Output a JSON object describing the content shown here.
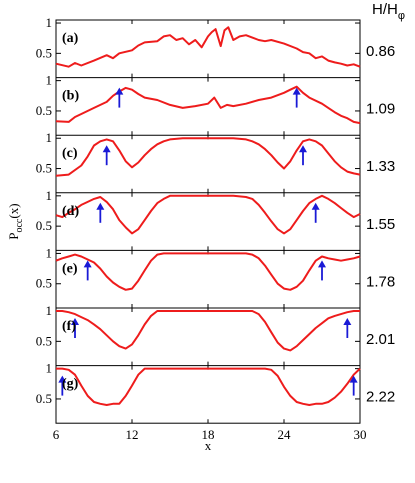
{
  "chart_data": {
    "type": "line",
    "ylabel_main": "P",
    "ylabel_sub": "occ",
    "ylabel_tail": "(x)",
    "xlabel": "x",
    "right_header_main": "H/H",
    "right_header_sub": "φ",
    "xlim": [
      6,
      30
    ],
    "ylim": [
      0.1,
      1.05
    ],
    "xticks": [
      "6",
      "12",
      "18",
      "24",
      "30"
    ],
    "yticks": [
      "0.5",
      "1"
    ],
    "line_color": "#ee1c1c",
    "arrow_color": "#1a1ad6",
    "panels": [
      {
        "label": "(a)",
        "hval": "0.86",
        "arrows": [],
        "x": [
          6,
          7,
          7.5,
          8,
          9,
          10,
          10.5,
          11,
          12,
          12.5,
          13,
          14,
          14.5,
          15,
          15.5,
          16,
          16.5,
          17,
          17.5,
          18,
          18.3,
          18.6,
          19,
          19.3,
          19.6,
          20,
          20.5,
          21,
          21.5,
          22,
          22.5,
          23,
          24,
          25,
          25.5,
          26,
          26.5,
          27,
          27.5,
          28,
          28.5,
          29,
          29.5,
          30
        ],
        "y": [
          0.33,
          0.28,
          0.34,
          0.3,
          0.38,
          0.47,
          0.42,
          0.5,
          0.55,
          0.63,
          0.68,
          0.7,
          0.78,
          0.8,
          0.72,
          0.75,
          0.65,
          0.72,
          0.6,
          0.78,
          0.85,
          0.9,
          0.62,
          0.88,
          0.93,
          0.72,
          0.78,
          0.8,
          0.76,
          0.72,
          0.7,
          0.72,
          0.66,
          0.58,
          0.52,
          0.5,
          0.42,
          0.45,
          0.38,
          0.35,
          0.33,
          0.3,
          0.32,
          0.28
        ]
      },
      {
        "label": "(b)",
        "hval": "1.09",
        "arrows": [
          11,
          25
        ],
        "x": [
          6,
          7,
          7.5,
          8,
          9,
          10,
          10.5,
          11,
          11.5,
          12,
          12.5,
          13,
          14,
          15,
          16,
          17,
          18,
          18.5,
          19,
          19.5,
          20,
          21,
          22,
          23,
          24,
          24.5,
          25,
          25.5,
          26,
          27,
          27.5,
          28,
          28.5,
          29,
          29.5,
          30
        ],
        "y": [
          0.33,
          0.32,
          0.4,
          0.45,
          0.55,
          0.65,
          0.75,
          0.82,
          0.88,
          0.85,
          0.78,
          0.72,
          0.68,
          0.6,
          0.55,
          0.58,
          0.62,
          0.72,
          0.55,
          0.6,
          0.58,
          0.62,
          0.68,
          0.72,
          0.8,
          0.85,
          0.9,
          0.8,
          0.72,
          0.62,
          0.55,
          0.48,
          0.42,
          0.38,
          0.32,
          0.3
        ]
      },
      {
        "label": "(c)",
        "hval": "1.33",
        "arrows": [
          10,
          25.5
        ],
        "x": [
          6,
          7,
          8,
          8.5,
          9,
          9.5,
          10,
          10.5,
          11,
          11.5,
          12,
          12.5,
          13,
          13.5,
          14,
          14.5,
          15,
          16,
          17,
          18,
          19,
          20,
          21,
          21.5,
          22,
          22.5,
          23,
          23.5,
          24,
          24.5,
          25,
          25.5,
          26,
          26.5,
          27,
          27.5,
          28,
          28.5,
          29,
          29.5,
          30
        ],
        "y": [
          0.38,
          0.4,
          0.55,
          0.7,
          0.88,
          0.95,
          0.98,
          0.95,
          0.8,
          0.62,
          0.52,
          0.6,
          0.72,
          0.82,
          0.9,
          0.95,
          0.98,
          1,
          1,
          1,
          1,
          1,
          0.98,
          0.95,
          0.9,
          0.82,
          0.72,
          0.6,
          0.5,
          0.62,
          0.8,
          0.95,
          0.98,
          0.95,
          0.88,
          0.75,
          0.62,
          0.52,
          0.45,
          0.42,
          0.4
        ]
      },
      {
        "label": "(d)",
        "hval": "1.55",
        "arrows": [
          9.5,
          26.5
        ],
        "x": [
          6,
          6.5,
          7,
          7.5,
          8,
          8.5,
          9,
          9.5,
          10,
          10.5,
          11,
          11.5,
          12,
          12.5,
          13,
          13.5,
          14,
          14.5,
          15,
          16,
          17,
          18,
          19,
          20,
          21,
          21.5,
          22,
          22.5,
          23,
          23.5,
          24,
          24.5,
          25,
          25.5,
          26,
          26.5,
          27,
          27.5,
          28,
          28.5,
          29,
          29.5,
          30
        ],
        "y": [
          0.68,
          0.65,
          0.72,
          0.78,
          0.85,
          0.9,
          0.95,
          0.98,
          0.9,
          0.78,
          0.6,
          0.48,
          0.38,
          0.45,
          0.6,
          0.75,
          0.88,
          0.95,
          1,
          1,
          1,
          1,
          1,
          1,
          0.98,
          0.95,
          0.85,
          0.72,
          0.58,
          0.45,
          0.38,
          0.45,
          0.6,
          0.75,
          0.88,
          0.95,
          1,
          0.95,
          0.88,
          0.8,
          0.72,
          0.65,
          0.7
        ]
      },
      {
        "label": "(e)",
        "hval": "1.78",
        "arrows": [
          8.5,
          27
        ],
        "x": [
          6,
          6.5,
          7,
          7.5,
          8,
          8.5,
          9,
          9.5,
          10,
          10.5,
          11,
          11.5,
          12,
          12.5,
          13,
          13.5,
          14,
          14.5,
          15,
          16,
          17,
          18,
          19,
          20,
          21,
          21.5,
          22,
          22.5,
          23,
          23.5,
          24,
          24.5,
          25,
          25.5,
          26,
          26.5,
          27,
          27.5,
          28,
          28.5,
          29,
          29.5,
          30
        ],
        "y": [
          0.88,
          0.92,
          0.95,
          0.98,
          0.95,
          0.9,
          0.85,
          0.75,
          0.62,
          0.52,
          0.45,
          0.4,
          0.42,
          0.55,
          0.72,
          0.88,
          0.98,
          1,
          1,
          1,
          1,
          1,
          1,
          1,
          1,
          0.98,
          0.92,
          0.8,
          0.65,
          0.5,
          0.42,
          0.4,
          0.45,
          0.55,
          0.72,
          0.88,
          0.95,
          0.92,
          0.9,
          0.88,
          0.9,
          0.92,
          0.95
        ]
      },
      {
        "label": "(f)",
        "hval": "2.01",
        "arrows": [
          7.5,
          29
        ],
        "x": [
          6,
          6.5,
          7,
          7.5,
          8,
          8.5,
          9,
          9.5,
          10,
          10.5,
          11,
          11.5,
          12,
          12.5,
          13,
          13.5,
          14,
          14.5,
          15,
          16,
          17,
          18,
          19,
          20,
          21,
          21.5,
          22,
          22.5,
          23,
          23.5,
          24,
          24.5,
          25,
          25.5,
          26,
          26.5,
          27,
          27.5,
          28,
          28.5,
          29,
          29.5,
          30
        ],
        "y": [
          1,
          1,
          0.98,
          0.95,
          0.9,
          0.85,
          0.78,
          0.7,
          0.6,
          0.5,
          0.42,
          0.38,
          0.45,
          0.6,
          0.78,
          0.92,
          1,
          1,
          1,
          1,
          1,
          1,
          1,
          1,
          1,
          1,
          0.95,
          0.82,
          0.65,
          0.48,
          0.38,
          0.35,
          0.42,
          0.52,
          0.62,
          0.72,
          0.8,
          0.88,
          0.92,
          0.95,
          0.98,
          1,
          1
        ]
      },
      {
        "label": "(g)",
        "hval": "2.22",
        "arrows": [
          6.5,
          29.5
        ],
        "x": [
          6,
          6.5,
          7,
          7.5,
          8,
          8.5,
          9,
          9.5,
          10,
          10.5,
          11,
          11.5,
          12,
          12.5,
          13,
          13.5,
          14,
          15,
          16,
          17,
          18,
          19,
          20,
          21,
          22,
          22.5,
          23,
          23.5,
          24,
          24.5,
          25,
          25.5,
          26,
          26.5,
          27,
          27.5,
          28,
          28.5,
          29,
          29.5,
          30
        ],
        "y": [
          1,
          1,
          0.98,
          0.9,
          0.72,
          0.55,
          0.45,
          0.42,
          0.4,
          0.42,
          0.42,
          0.55,
          0.72,
          0.9,
          1,
          1,
          1,
          1,
          1,
          1,
          1,
          1,
          1,
          1,
          1,
          1,
          0.98,
          0.88,
          0.7,
          0.55,
          0.45,
          0.42,
          0.4,
          0.42,
          0.42,
          0.45,
          0.52,
          0.62,
          0.75,
          0.9,
          1
        ]
      }
    ]
  }
}
